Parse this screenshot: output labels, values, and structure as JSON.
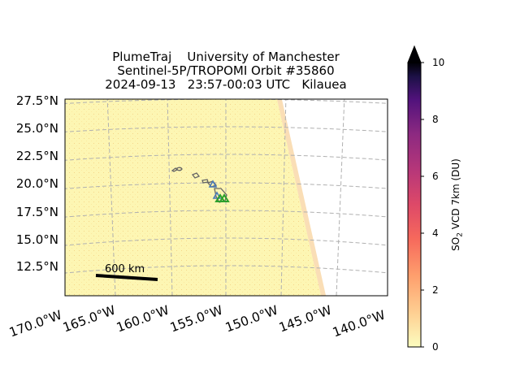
{
  "title": {
    "line1": "PlumeTraj    University of Manchester",
    "line2": "Sentinel-5P/TROPOMI Orbit #35860",
    "line3": "2024-09-13   23:57-00:03 UTC   Kilauea"
  },
  "map": {
    "lat_labels": [
      "27.5°N",
      "25.0°N",
      "22.5°N",
      "20.0°N",
      "17.5°N",
      "15.0°N",
      "12.5°N"
    ],
    "lon_labels": [
      "170.0°W",
      "165.0°W",
      "160.0°W",
      "155.0°W",
      "150.0°W",
      "145.0°W",
      "140.0°W"
    ],
    "scale_bar_label": "600 km",
    "background_color": "#fdf6b3",
    "no_data_color": "#ffffff",
    "coast_color": "#666666",
    "gridline_color": "#b0b0b0",
    "volcano_marker_color": "#2ca02c",
    "trajectory_marker_color": "#4a7ab8"
  },
  "colorbar": {
    "label_prefix": "SO",
    "label_sub": "2",
    "label_suffix": " VCD 7km (DU)",
    "ticks": [
      "0",
      "2",
      "4",
      "6",
      "8",
      "10"
    ],
    "range": [
      0,
      10
    ],
    "extend": "max",
    "colormap": "magma_r"
  }
}
